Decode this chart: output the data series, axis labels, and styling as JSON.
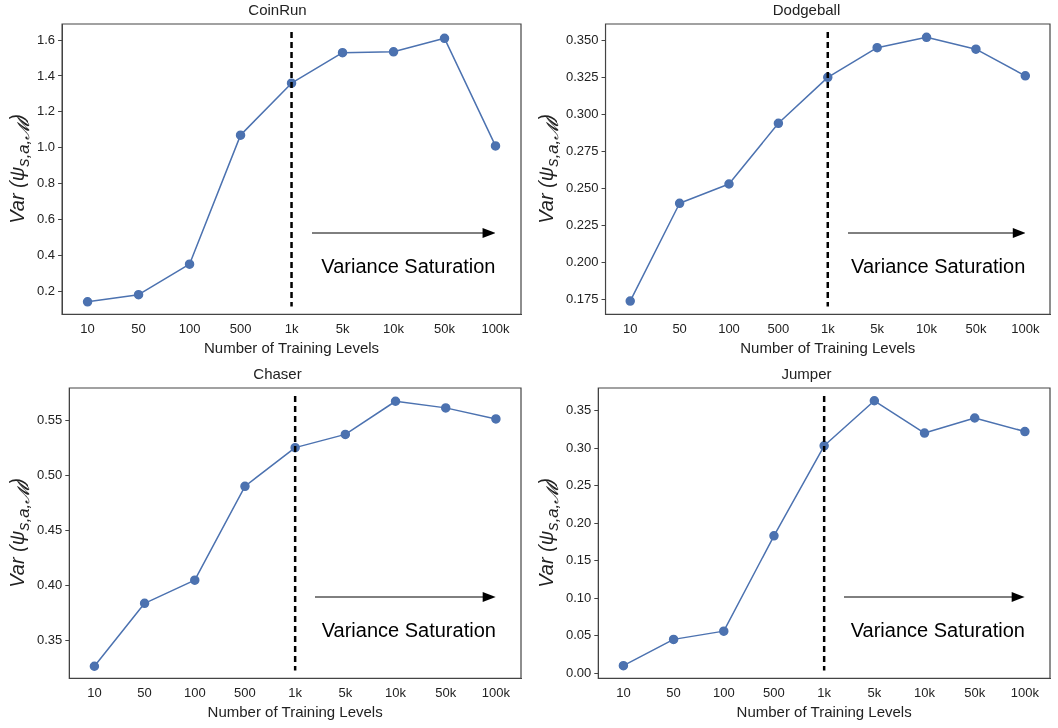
{
  "chart_data": [
    {
      "type": "line",
      "title": "CoinRun",
      "xlabel": "Number of Training Levels",
      "ylabel": "Var (ψ$_{s,a,𝓜}$)",
      "categories": [
        "10",
        "50",
        "100",
        "500",
        "1k",
        "5k",
        "10k",
        "50k",
        "100k"
      ],
      "series": [
        {
          "color": "#4c72b0",
          "values": [
            0.14,
            0.18,
            0.35,
            1.07,
            1.36,
            1.53,
            1.535,
            1.61,
            1.01
          ]
        }
      ],
      "ylim": [
        0.07,
        1.69
      ],
      "yticks": [
        0.2,
        0.4,
        0.6,
        0.8,
        {
          "value": 1,
          "label": "1.0"
        },
        1.2,
        1.4,
        1.6
      ],
      "grid": false,
      "legend": false,
      "marker": "circle",
      "line_style": "solid",
      "ref_lines": [
        {
          "axis": "x",
          "value": "1k",
          "color": "#000000",
          "line_style": "dashed"
        }
      ],
      "annotations": [
        "Variance Saturation"
      ]
    },
    {
      "type": "line",
      "title": "Dodgeball",
      "xlabel": "Number of Training Levels",
      "ylabel": "Var (ψ$_{s,a,𝓜}$)",
      "categories": [
        "10",
        "50",
        "100",
        "500",
        "1k",
        "5k",
        "10k",
        "50k",
        "100k"
      ],
      "series": [
        {
          "color": "#4c72b0",
          "values": [
            0.174,
            0.24,
            0.253,
            0.294,
            0.325,
            0.345,
            0.352,
            0.344,
            0.326
          ]
        }
      ],
      "ylim": [
        0.165,
        0.361
      ],
      "yticks": [
        0.175,
        {
          "value": 0.2,
          "label": "0.200"
        },
        0.225,
        {
          "value": 0.25,
          "label": "0.250"
        },
        0.275,
        {
          "value": 0.3,
          "label": "0.300"
        },
        0.325,
        {
          "value": 0.35,
          "label": "0.350"
        }
      ],
      "grid": false,
      "legend": false,
      "marker": "circle",
      "line_style": "solid",
      "ref_lines": [
        {
          "axis": "x",
          "value": "1k",
          "color": "#000000",
          "line_style": "dashed"
        }
      ],
      "annotations": [
        "Variance Saturation"
      ]
    },
    {
      "type": "line",
      "title": "Chaser",
      "xlabel": "Number of Training Levels",
      "ylabel": "Var (ψ$_{s,a,𝓜}$)",
      "categories": [
        "10",
        "50",
        "100",
        "500",
        "1k",
        "5k",
        "10k",
        "50k",
        "100k"
      ],
      "series": [
        {
          "color": "#4c72b0",
          "values": [
            0.327,
            0.384,
            0.405,
            0.49,
            0.525,
            0.537,
            0.567,
            0.561,
            0.551
          ]
        }
      ],
      "ylim": [
        0.316,
        0.579
      ],
      "yticks": [
        {
          "value": 0.35,
          "label": "0.35"
        },
        {
          "value": 0.4,
          "label": "0.40"
        },
        {
          "value": 0.45,
          "label": "0.45"
        },
        {
          "value": 0.5,
          "label": "0.50"
        },
        {
          "value": 0.55,
          "label": "0.55"
        }
      ],
      "grid": false,
      "legend": false,
      "marker": "circle",
      "line_style": "solid",
      "ref_lines": [
        {
          "axis": "x",
          "value": "1k",
          "color": "#000000",
          "line_style": "dashed"
        }
      ],
      "annotations": [
        "Variance Saturation"
      ]
    },
    {
      "type": "line",
      "title": "Jumper",
      "xlabel": "Number of Training Levels",
      "ylabel": "Var (ψ$_{s,a,𝓜}$)",
      "categories": [
        "10",
        "50",
        "100",
        "500",
        "1k",
        "5k",
        "10k",
        "50k",
        "100k"
      ],
      "series": [
        {
          "color": "#4c72b0",
          "values": [
            0.01,
            0.045,
            0.056,
            0.183,
            0.303,
            0.363,
            0.32,
            0.34,
            0.322
          ]
        }
      ],
      "ylim": [
        -0.007,
        0.38
      ],
      "yticks": [
        {
          "value": 0,
          "label": "0.00"
        },
        {
          "value": 0.05,
          "label": "0.05"
        },
        {
          "value": 0.1,
          "label": "0.10"
        },
        {
          "value": 0.15,
          "label": "0.15"
        },
        {
          "value": 0.2,
          "label": "0.20"
        },
        {
          "value": 0.25,
          "label": "0.25"
        },
        {
          "value": 0.3,
          "label": "0.30"
        },
        {
          "value": 0.35,
          "label": "0.35"
        }
      ],
      "grid": false,
      "legend": false,
      "marker": "circle",
      "line_style": "solid",
      "ref_lines": [
        {
          "axis": "x",
          "value": "1k",
          "color": "#000000",
          "line_style": "dashed"
        }
      ],
      "annotations": [
        "Variance Saturation"
      ]
    }
  ]
}
